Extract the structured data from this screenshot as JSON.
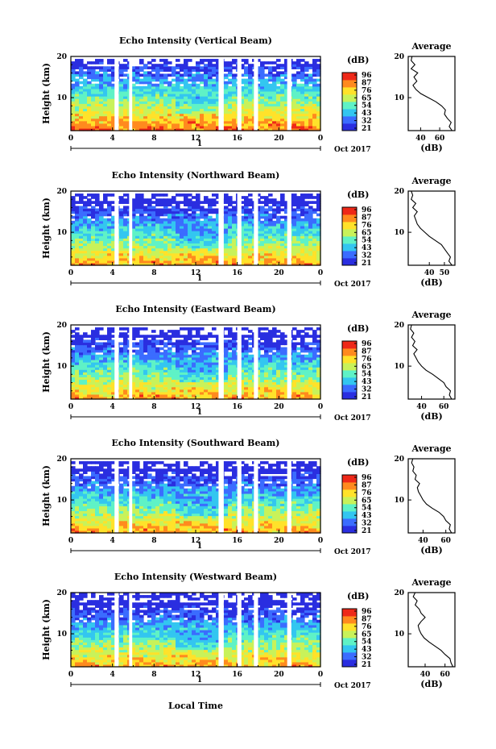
{
  "figure": {
    "xlabel": "Local Time",
    "date_label": "Oct 2017",
    "day_marker": "1",
    "colorbar_unit": "(dB)",
    "colorbar_ticks": [
      "96",
      "87",
      "76",
      "65",
      "54",
      "43",
      "32",
      "21"
    ],
    "colormap": [
      "#2a2ee0",
      "#3b6cff",
      "#33c6f0",
      "#5ff2c6",
      "#c8f25a",
      "#ffe22a",
      "#ff8a1e",
      "#ee2818"
    ]
  },
  "chart_data": [
    {
      "type": "heatmap",
      "title": "Echo Intensity (Vertical Beam)",
      "ylabel": "Height (km)",
      "xlim": [
        0,
        24
      ],
      "ylim": [
        2,
        20
      ],
      "xticks": [
        "0",
        "4",
        "8",
        "12",
        "16",
        "20",
        "0"
      ],
      "yticks": [
        "10",
        "20"
      ],
      "gaps_hours": [
        [
          4.2,
          4.6
        ],
        [
          5.6,
          5.9
        ],
        [
          14.2,
          14.7
        ],
        [
          16.0,
          16.4
        ],
        [
          17.6,
          18.0
        ],
        [
          20.8,
          21.2
        ]
      ],
      "average_profile": {
        "title": "Average",
        "xlabel": "(dB)",
        "xlim": [
          27,
          76
        ],
        "xticks": [
          "40",
          "60"
        ],
        "heights_km": [
          2,
          3,
          4,
          5,
          6,
          7,
          8,
          9,
          10,
          11,
          12,
          13,
          14,
          15,
          16,
          17,
          18,
          19,
          20
        ],
        "db": [
          73,
          70,
          72,
          68,
          65,
          66,
          62,
          56,
          48,
          40,
          35,
          32,
          36,
          33,
          37,
          30,
          34,
          30,
          31
        ]
      }
    },
    {
      "type": "heatmap",
      "title": "Echo Intensity (Northward Beam)",
      "ylabel": "Height (km)",
      "xlim": [
        0,
        24
      ],
      "ylim": [
        2,
        20
      ],
      "xticks": [
        "0",
        "4",
        "8",
        "12",
        "16",
        "20",
        "0"
      ],
      "yticks": [
        "10",
        "20"
      ],
      "gaps_hours": [
        [
          4.2,
          4.6
        ],
        [
          5.6,
          5.9
        ],
        [
          14.2,
          14.7
        ],
        [
          16.0,
          16.4
        ],
        [
          17.6,
          18.0
        ],
        [
          20.8,
          21.2
        ]
      ],
      "average_profile": {
        "title": "Average",
        "xlabel": "(dB)",
        "xlim": [
          26,
          57
        ],
        "xticks": [
          "40",
          "50"
        ],
        "heights_km": [
          2,
          3,
          4,
          5,
          6,
          7,
          8,
          9,
          10,
          11,
          12,
          13,
          14,
          15,
          16,
          17,
          18,
          19,
          20
        ],
        "db": [
          55,
          53,
          54,
          52,
          50,
          48,
          44,
          40,
          37,
          34,
          32,
          31,
          30,
          32,
          29,
          31,
          28,
          29,
          28
        ]
      }
    },
    {
      "type": "heatmap",
      "title": "Echo Intensity (Eastward Beam)",
      "ylabel": "Height (km)",
      "xlim": [
        0,
        24
      ],
      "ylim": [
        2,
        20
      ],
      "xticks": [
        "0",
        "4",
        "8",
        "12",
        "16",
        "20",
        "0"
      ],
      "yticks": [
        "10",
        "20"
      ],
      "gaps_hours": [
        [
          4.2,
          4.6
        ],
        [
          5.6,
          5.9
        ],
        [
          14.2,
          14.7
        ],
        [
          16.0,
          16.4
        ],
        [
          17.6,
          18.0
        ],
        [
          20.8,
          21.2
        ]
      ],
      "average_profile": {
        "title": "Average",
        "xlabel": "(dB)",
        "xlim": [
          28,
          70
        ],
        "xticks": [
          "40",
          "60"
        ],
        "heights_km": [
          2,
          3,
          4,
          5,
          6,
          7,
          8,
          9,
          10,
          11,
          12,
          13,
          14,
          15,
          16,
          17,
          18,
          19,
          20
        ],
        "db": [
          67,
          65,
          66,
          62,
          60,
          55,
          50,
          44,
          40,
          37,
          35,
          33,
          36,
          32,
          34,
          31,
          33,
          30,
          31
        ]
      }
    },
    {
      "type": "heatmap",
      "title": "Echo Intensity (Southward Beam)",
      "ylabel": "Height (km)",
      "xlim": [
        0,
        24
      ],
      "ylim": [
        2,
        20
      ],
      "xticks": [
        "0",
        "4",
        "8",
        "12",
        "16",
        "20",
        "0"
      ],
      "yticks": [
        "10",
        "20"
      ],
      "gaps_hours": [
        [
          4.2,
          4.6
        ],
        [
          5.6,
          5.9
        ],
        [
          14.2,
          14.7
        ],
        [
          16.0,
          16.4
        ],
        [
          17.6,
          18.0
        ],
        [
          20.8,
          21.2
        ]
      ],
      "average_profile": {
        "title": "Average",
        "xlabel": "(dB)",
        "xlim": [
          27,
          68
        ],
        "xticks": [
          "40",
          "60"
        ],
        "heights_km": [
          2,
          3,
          4,
          5,
          6,
          7,
          8,
          9,
          10,
          11,
          12,
          13,
          14,
          15,
          16,
          17,
          18,
          19,
          20
        ],
        "db": [
          65,
          63,
          64,
          60,
          58,
          54,
          48,
          43,
          40,
          38,
          36,
          35,
          37,
          33,
          34,
          31,
          32,
          30,
          31
        ]
      }
    },
    {
      "type": "heatmap",
      "title": "Echo Intensity (Westward Beam)",
      "ylabel": "Height (km)",
      "xlim": [
        0,
        24
      ],
      "ylim": [
        2,
        20
      ],
      "xticks": [
        "0",
        "4",
        "8",
        "12",
        "16",
        "20",
        "0"
      ],
      "yticks": [
        "10",
        "20"
      ],
      "gaps_hours": [
        [
          4.2,
          4.6
        ],
        [
          5.6,
          5.9
        ],
        [
          14.2,
          14.7
        ],
        [
          16.0,
          16.4
        ],
        [
          17.6,
          18.0
        ],
        [
          20.8,
          21.2
        ]
      ],
      "average_profile": {
        "title": "Average",
        "xlabel": "(dB)",
        "xlim": [
          23,
          70
        ],
        "xticks": [
          "40",
          "60"
        ],
        "heights_km": [
          2,
          3,
          4,
          5,
          6,
          7,
          8,
          9,
          10,
          11,
          12,
          13,
          14,
          15,
          16,
          17,
          18,
          19,
          20
        ],
        "db": [
          68,
          66,
          65,
          60,
          56,
          50,
          44,
          39,
          36,
          34,
          33,
          36,
          40,
          36,
          34,
          30,
          32,
          28,
          30
        ]
      }
    }
  ]
}
